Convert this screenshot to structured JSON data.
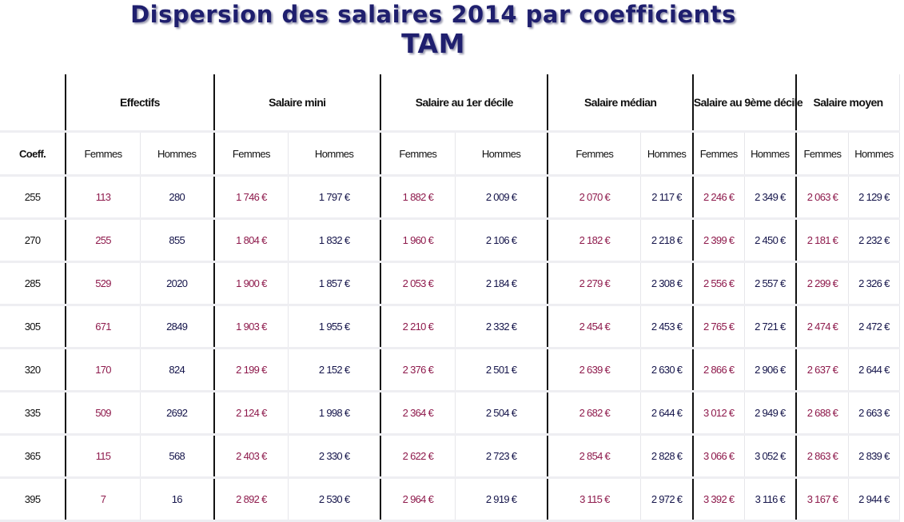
{
  "title": {
    "line1": "Dispersion des salaires 2014 par coefficients",
    "line2": "TAM"
  },
  "table": {
    "groups": [
      "Effectifs",
      "Salaire mini",
      "Salaire au 1er décile",
      "Salaire médian",
      "Salaire au 9ème décile",
      "Salaire moyen"
    ],
    "coeff_header": "Coeff.",
    "female_label": "Femmes",
    "male_label": "Hommes",
    "rows": [
      {
        "coeff": "255",
        "values": [
          "113",
          "280",
          "1 746 €",
          "1 797 €",
          "1 882 €",
          "2 009 €",
          "2 070 €",
          "2 117 €",
          "2 246 €",
          "2 349 €",
          "2 063 €",
          "2 129 €"
        ]
      },
      {
        "coeff": "270",
        "values": [
          "255",
          "855",
          "1 804 €",
          "1 832 €",
          "1 960 €",
          "2 106 €",
          "2 182 €",
          "2 218 €",
          "2 399 €",
          "2 450 €",
          "2 181 €",
          "2 232 €"
        ]
      },
      {
        "coeff": "285",
        "values": [
          "529",
          "2020",
          "1 900 €",
          "1 857 €",
          "2 053 €",
          "2 184 €",
          "2 279 €",
          "2 308 €",
          "2 556 €",
          "2 557 €",
          "2 299 €",
          "2 326 €"
        ]
      },
      {
        "coeff": "305",
        "values": [
          "671",
          "2849",
          "1 903 €",
          "1 955 €",
          "2 210 €",
          "2 332 €",
          "2 454 €",
          "2 453 €",
          "2 765 €",
          "2 721 €",
          "2 474 €",
          "2 472 €"
        ]
      },
      {
        "coeff": "320",
        "values": [
          "170",
          "824",
          "2 199 €",
          "2 152 €",
          "2 376 €",
          "2 501 €",
          "2 639 €",
          "2 630 €",
          "2 866 €",
          "2 906 €",
          "2 637 €",
          "2 644 €"
        ]
      },
      {
        "coeff": "335",
        "values": [
          "509",
          "2692",
          "2 124 €",
          "1 998 €",
          "2 364 €",
          "2 504 €",
          "2 682 €",
          "2 644 €",
          "3 012 €",
          "2 949 €",
          "2 688 €",
          "2 663 €"
        ]
      },
      {
        "coeff": "365",
        "values": [
          "115",
          "568",
          "2 403 €",
          "2 330 €",
          "2 622 €",
          "2 723 €",
          "2 854 €",
          "2 828 €",
          "3 066 €",
          "3 052 €",
          "2 863 €",
          "2 839 €"
        ]
      },
      {
        "coeff": "395",
        "values": [
          "7",
          "16",
          "2 892 €",
          "2 530 €",
          "2 964 €",
          "2 919 €",
          "3 115 €",
          "2 972 €",
          "3 392 €",
          "3 116 €",
          "3 167 €",
          "2 944 €"
        ]
      }
    ]
  },
  "colors": {
    "title": "#1f1f6e",
    "female_value": "#8e1a4c",
    "male_value": "#14144a"
  }
}
